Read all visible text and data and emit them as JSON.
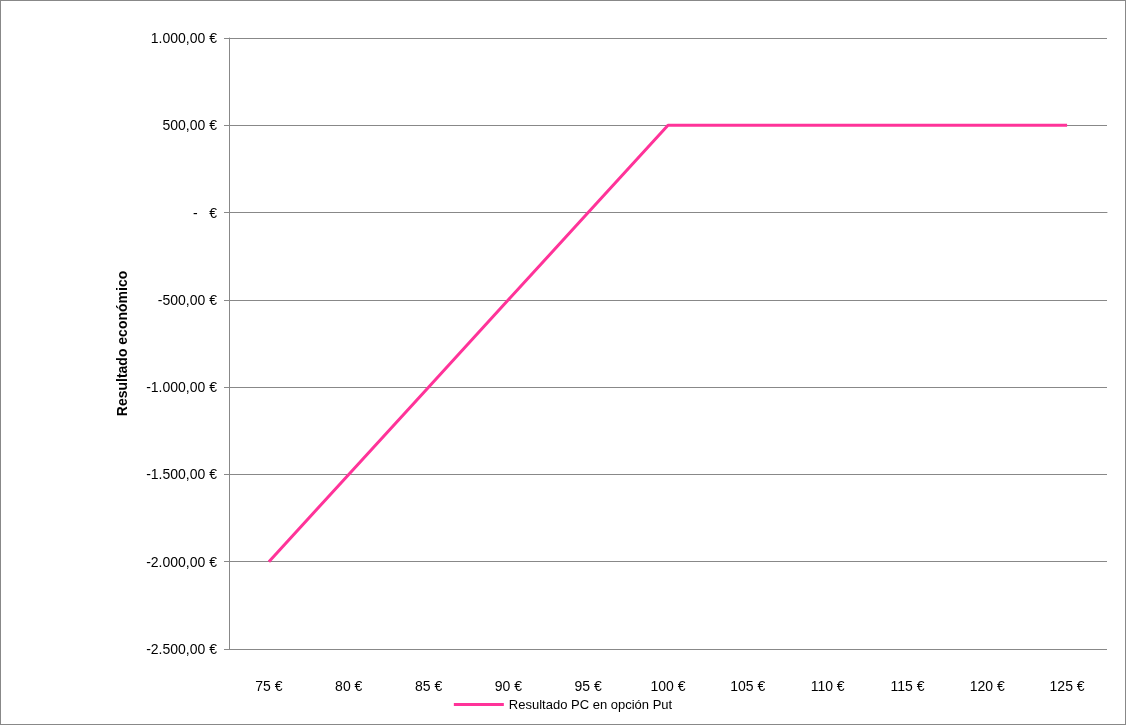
{
  "chart_data": {
    "type": "line",
    "ylabel": "Resultado económico",
    "categories": [
      "75 €",
      "80 €",
      "85 €",
      "90 €",
      "95 €",
      "100 €",
      "105 €",
      "110 €",
      "115 €",
      "120 €",
      "125 €"
    ],
    "series": [
      {
        "name": "Resultado PC en opción Put",
        "color": "#ff3399",
        "values": [
          -2000,
          -1500,
          -1000,
          -500,
          0,
          500,
          500,
          500,
          500,
          500,
          500
        ]
      }
    ],
    "ylim": [
      -2500,
      1000
    ],
    "yticks": [
      {
        "value": -2500,
        "label": "-2.500,00 €"
      },
      {
        "value": -2000,
        "label": "-2.000,00 €"
      },
      {
        "value": -1500,
        "label": "-1.500,00 €"
      },
      {
        "value": -1000,
        "label": "-1.000,00 €"
      },
      {
        "value": -500,
        "label": "-500,00 €"
      },
      {
        "value": 0,
        "label": "-   €"
      },
      {
        "value": 500,
        "label": "500,00 €"
      },
      {
        "value": 1000,
        "label": "1.000,00 €"
      }
    ],
    "grid": "y",
    "legend": "bottom",
    "marker": "none",
    "line_style": "solid"
  }
}
